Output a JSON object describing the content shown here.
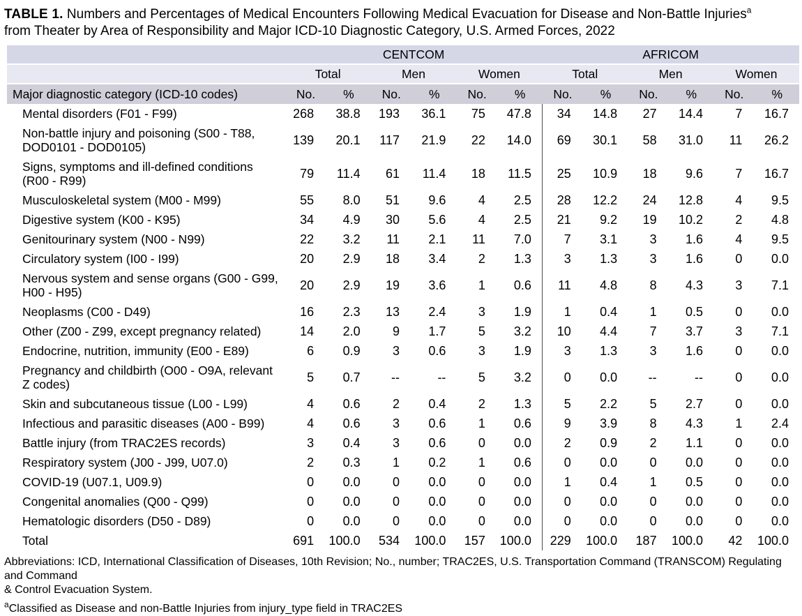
{
  "title": {
    "label": "TABLE 1.",
    "text": " Numbers and Percentages of Medical Encounters Following Medical Evacuation for Disease and Non-Battle Injuries",
    "footnote_marker": "a",
    "text_line2": "from Theater by Area of Responsibility and Major ICD-10 Diagnostic Category, U.S. Armed Forces, 2022"
  },
  "colors": {
    "group_header_bg": "#d5d7e7",
    "subgroup_header_bg": "#e7e8f2",
    "column_header_bg": "#cfced9",
    "section_divider": "#4a4a4a"
  },
  "chart_data": {
    "type": "table",
    "groups": [
      "CENTCOM",
      "AFRICOM"
    ],
    "subgroups": [
      "Total",
      "Men",
      "Women",
      "Total",
      "Men",
      "Women"
    ],
    "category_header": "Major diagnostic category (ICD-10 codes)",
    "no_label": "No.",
    "pct_label": "%",
    "rows": [
      {
        "category": "Mental disorders (F01 - F99)",
        "values": [
          "268",
          "38.8",
          "193",
          "36.1",
          "75",
          "47.8",
          "34",
          "14.8",
          "27",
          "14.4",
          "7",
          "16.7"
        ]
      },
      {
        "category": "Non-battle injury and poisoning (S00 - T88,\nDOD0101 - DOD0105)",
        "values": [
          "139",
          "20.1",
          "117",
          "21.9",
          "22",
          "14.0",
          "69",
          "30.1",
          "58",
          "31.0",
          "11",
          "26.2"
        ]
      },
      {
        "category": "Signs, symptoms and ill-defined conditions\n(R00 - R99)",
        "values": [
          "79",
          "11.4",
          "61",
          "11.4",
          "18",
          "11.5",
          "25",
          "10.9",
          "18",
          "9.6",
          "7",
          "16.7"
        ]
      },
      {
        "category": "Musculoskeletal system (M00 - M99)",
        "values": [
          "55",
          "8.0",
          "51",
          "9.6",
          "4",
          "2.5",
          "28",
          "12.2",
          "24",
          "12.8",
          "4",
          "9.5"
        ]
      },
      {
        "category": "Digestive system (K00 - K95)",
        "values": [
          "34",
          "4.9",
          "30",
          "5.6",
          "4",
          "2.5",
          "21",
          "9.2",
          "19",
          "10.2",
          "2",
          "4.8"
        ]
      },
      {
        "category": "Genitourinary system (N00 - N99)",
        "values": [
          "22",
          "3.2",
          "11",
          "2.1",
          "11",
          "7.0",
          "7",
          "3.1",
          "3",
          "1.6",
          "4",
          "9.5"
        ]
      },
      {
        "category": "Circulatory system (I00 - I99)",
        "values": [
          "20",
          "2.9",
          "18",
          "3.4",
          "2",
          "1.3",
          "3",
          "1.3",
          "3",
          "1.6",
          "0",
          "0.0"
        ]
      },
      {
        "category": "Nervous system and sense organs (G00 - G99,\nH00 - H95)",
        "values": [
          "20",
          "2.9",
          "19",
          "3.6",
          "1",
          "0.6",
          "11",
          "4.8",
          "8",
          "4.3",
          "3",
          "7.1"
        ]
      },
      {
        "category": "Neoplasms (C00 - D49)",
        "values": [
          "16",
          "2.3",
          "13",
          "2.4",
          "3",
          "1.9",
          "1",
          "0.4",
          "1",
          "0.5",
          "0",
          "0.0"
        ]
      },
      {
        "category": "Other (Z00 - Z99, except pregnancy related)",
        "values": [
          "14",
          "2.0",
          "9",
          "1.7",
          "5",
          "3.2",
          "10",
          "4.4",
          "7",
          "3.7",
          "3",
          "7.1"
        ]
      },
      {
        "category": "Endocrine, nutrition, immunity (E00 - E89)",
        "values": [
          "6",
          "0.9",
          "3",
          "0.6",
          "3",
          "1.9",
          "3",
          "1.3",
          "3",
          "1.6",
          "0",
          "0.0"
        ]
      },
      {
        "category": "Pregnancy and childbirth (O00 - O9A, relevant\nZ codes)",
        "values": [
          "5",
          "0.7",
          "--",
          "--",
          "5",
          "3.2",
          "0",
          "0.0",
          "--",
          "--",
          "0",
          "0.0"
        ]
      },
      {
        "category": "Skin and subcutaneous tissue (L00 - L99)",
        "values": [
          "4",
          "0.6",
          "2",
          "0.4",
          "2",
          "1.3",
          "5",
          "2.2",
          "5",
          "2.7",
          "0",
          "0.0"
        ]
      },
      {
        "category": "Infectious and parasitic diseases (A00 - B99)",
        "values": [
          "4",
          "0.6",
          "3",
          "0.6",
          "1",
          "0.6",
          "9",
          "3.9",
          "8",
          "4.3",
          "1",
          "2.4"
        ]
      },
      {
        "category": "Battle injury (from TRAC2ES records)",
        "values": [
          "3",
          "0.4",
          "3",
          "0.6",
          "0",
          "0.0",
          "2",
          "0.9",
          "2",
          "1.1",
          "0",
          "0.0"
        ]
      },
      {
        "category": "Respiratory system (J00 - J99, U07.0)",
        "values": [
          "2",
          "0.3",
          "1",
          "0.2",
          "1",
          "0.6",
          "0",
          "0.0",
          "0",
          "0.0",
          "0",
          "0.0"
        ]
      },
      {
        "category": "COVID-19 (U07.1, U09.9)",
        "values": [
          "0",
          "0.0",
          "0",
          "0.0",
          "0",
          "0.0",
          "1",
          "0.4",
          "1",
          "0.5",
          "0",
          "0.0"
        ]
      },
      {
        "category": "Congenital anomalies (Q00 - Q99)",
        "values": [
          "0",
          "0.0",
          "0",
          "0.0",
          "0",
          "0.0",
          "0",
          "0.0",
          "0",
          "0.0",
          "0",
          "0.0"
        ]
      },
      {
        "category": "Hematologic disorders (D50 - D89)",
        "values": [
          "0",
          "0.0",
          "0",
          "0.0",
          "0",
          "0.0",
          "0",
          "0.0",
          "0",
          "0.0",
          "0",
          "0.0"
        ]
      }
    ],
    "total_row": {
      "category": "Total",
      "values": [
        "691",
        "100.0",
        "534",
        "100.0",
        "157",
        "100.0",
        "229",
        "100.0",
        "187",
        "100.0",
        "42",
        "100.0"
      ]
    }
  },
  "footer": {
    "abbreviations": "Abbreviations: ICD, International Classification of Diseases, 10th Revision; No., number; TRAC2ES, U.S. Transportation Command (TRANSCOM) Regulating and Command\n& Control Evacuation System.",
    "footnote_marker": "a",
    "footnote": "Classified as Disease and non-Battle Injuries from injury_type field in TRAC2ES"
  }
}
